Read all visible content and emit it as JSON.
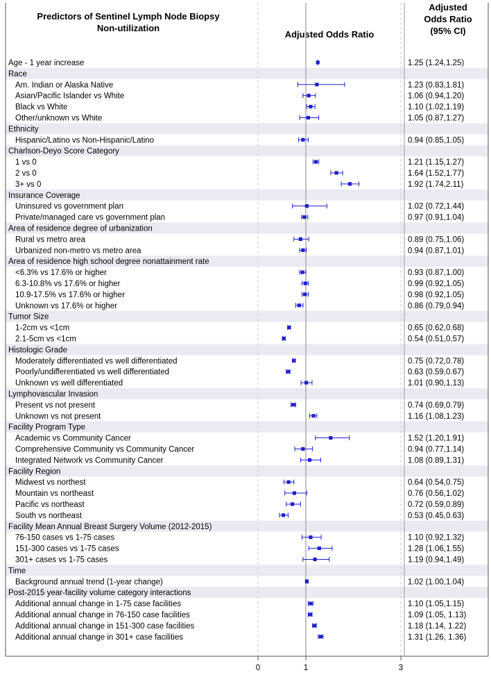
{
  "header": {
    "title_line1": "Predictors of Sentinel Lymph Node Biopsy",
    "title_line2": "Non-utilization",
    "axis_title": "Adjusted Odds Ratio",
    "col_title_line1": "Adjusted",
    "col_title_line2": "Odds Ratio",
    "col_title_line3": "(95% CI)"
  },
  "colors": {
    "marker": "#1f1fcc",
    "band": "#eaeaf2",
    "refline": "#9a9a9a",
    "grid": "#cfcfcf"
  },
  "chart_data": {
    "type": "forest",
    "x_ticks": [
      "0",
      "1",
      "3"
    ],
    "reference_value": 1,
    "rows": [
      {
        "label": "Age - 1 year increase",
        "or": 1.25,
        "lo": 1.24,
        "hi": 1.25,
        "ci": "1.25 (1.24,1.25)",
        "indent": false
      },
      {
        "label": "Race",
        "heading": true
      },
      {
        "label": "Am. Indian or Alaska Native",
        "or": 1.23,
        "lo": 0.83,
        "hi": 1.81,
        "ci": "1.23 (0.83,1.81)",
        "indent": true
      },
      {
        "label": "Asian/Pacific Islander vs White",
        "or": 1.06,
        "lo": 0.94,
        "hi": 1.2,
        "ci": "1.06 (0.94,1.20)",
        "indent": true
      },
      {
        "label": "Black vs White",
        "or": 1.1,
        "lo": 1.02,
        "hi": 1.19,
        "ci": "1.10 (1.02,1.19)",
        "indent": true
      },
      {
        "label": "Other/unknown vs White",
        "or": 1.05,
        "lo": 0.87,
        "hi": 1.27,
        "ci": "1.05 (0.87,1.27)",
        "indent": true
      },
      {
        "label": "Ethnicity",
        "heading": true
      },
      {
        "label": "Hispanic/Latino vs Non-Hispanic/Latino",
        "or": 0.94,
        "lo": 0.85,
        "hi": 1.05,
        "ci": "0.94 (0.85,1.05)",
        "indent": true
      },
      {
        "label": "Charlson-Deyo Score Category",
        "heading": true
      },
      {
        "label": "1 vs 0",
        "or": 1.21,
        "lo": 1.15,
        "hi": 1.27,
        "ci": "1.21 (1.15,1.27)",
        "indent": true
      },
      {
        "label": "2 vs 0",
        "or": 1.64,
        "lo": 1.52,
        "hi": 1.77,
        "ci": "1.64 (1.52,1.77)",
        "indent": true
      },
      {
        "label": "3+ vs 0",
        "or": 1.92,
        "lo": 1.74,
        "hi": 2.11,
        "ci": "1.92 (1.74,2.11)",
        "indent": true
      },
      {
        "label": "Insurance Coverage",
        "heading": true
      },
      {
        "label": "Uninsured vs government plan",
        "or": 1.02,
        "lo": 0.72,
        "hi": 1.44,
        "ci": "1.02 (0.72,1.44)",
        "indent": true
      },
      {
        "label": "Private/managed care vs government plan",
        "or": 0.97,
        "lo": 0.91,
        "hi": 1.04,
        "ci": "0.97 (0.91,1.04)",
        "indent": true
      },
      {
        "label": "Area of residence degree of urbanization",
        "heading": true
      },
      {
        "label": "Rural vs metro area",
        "or": 0.89,
        "lo": 0.75,
        "hi": 1.06,
        "ci": "0.89 (0.75,1.06)",
        "indent": true
      },
      {
        "label": "Urbanized non-metro vs metro area",
        "or": 0.94,
        "lo": 0.87,
        "hi": 1.01,
        "ci": "0.94 (0.87,1.01)",
        "indent": true
      },
      {
        "label": "Area of residence high school degree nonattainment rate",
        "heading": true
      },
      {
        "label": "<6.3% vs 17.6% or higher",
        "or": 0.93,
        "lo": 0.87,
        "hi": 1.0,
        "ci": "0.93 (0.87,1.00)",
        "indent": true
      },
      {
        "label": "6.3-10.8% vs 17.6% or higher",
        "or": 0.99,
        "lo": 0.92,
        "hi": 1.05,
        "ci": "0.99 (0.92,1.05)",
        "indent": true
      },
      {
        "label": "10.9-17.5% vs 17.6% or higher",
        "or": 0.98,
        "lo": 0.92,
        "hi": 1.05,
        "ci": "0.98 (0.92,1.05)",
        "indent": true
      },
      {
        "label": "Unknown vs 17.6% or higher",
        "or": 0.86,
        "lo": 0.79,
        "hi": 0.94,
        "ci": "0.86 (0.79,0.94)",
        "indent": true
      },
      {
        "label": "Tumor Size",
        "heading": true
      },
      {
        "label": "1-2cm vs <1cm",
        "or": 0.65,
        "lo": 0.62,
        "hi": 0.68,
        "ci": "0.65 (0.62,0.68)",
        "indent": true
      },
      {
        "label": "2.1-5cm vs <1cm",
        "or": 0.54,
        "lo": 0.51,
        "hi": 0.57,
        "ci": "0.54 (0.51,0.57)",
        "indent": true
      },
      {
        "label": "Histologic Grade",
        "heading": true
      },
      {
        "label": "Moderately differentiated vs well differentiated",
        "or": 0.75,
        "lo": 0.72,
        "hi": 0.78,
        "ci": "0.75 (0.72,0.78)",
        "indent": true
      },
      {
        "label": "Poorly/undifferentiated vs well differentiated",
        "or": 0.63,
        "lo": 0.59,
        "hi": 0.67,
        "ci": "0.63 (0.59,0.67)",
        "indent": true
      },
      {
        "label": "Unknown vs well differentiated",
        "or": 1.01,
        "lo": 0.9,
        "hi": 1.13,
        "ci": "1.01 (0.90,1.13)",
        "indent": true
      },
      {
        "label": "Lymphovascular Invasion",
        "heading": true
      },
      {
        "label": "Present vs not present",
        "or": 0.74,
        "lo": 0.69,
        "hi": 0.79,
        "ci": "0.74 (0.69,0.79)",
        "indent": true
      },
      {
        "label": "Unknown vs not present",
        "or": 1.16,
        "lo": 1.08,
        "hi": 1.23,
        "ci": "1.16 (1.08,1.23)",
        "indent": true
      },
      {
        "label": "Facility Program Type",
        "heading": true
      },
      {
        "label": "Academic vs Community Cancer",
        "or": 1.52,
        "lo": 1.2,
        "hi": 1.91,
        "ci": "1.52 (1.20,1.91)",
        "indent": true
      },
      {
        "label": "Comprehensive Community vs Community Cancer",
        "or": 0.94,
        "lo": 0.77,
        "hi": 1.14,
        "ci": "0.94 (0.77,1.14)",
        "indent": true
      },
      {
        "label": "Integrated Network vs Community Cancer",
        "or": 1.08,
        "lo": 0.89,
        "hi": 1.31,
        "ci": "1.08 (0.89,1.31)",
        "indent": true
      },
      {
        "label": "Facility Region",
        "heading": true
      },
      {
        "label": "Midwest vs northest",
        "or": 0.64,
        "lo": 0.54,
        "hi": 0.75,
        "ci": "0.64 (0.54,0.75)",
        "indent": true
      },
      {
        "label": "Mountain vs northeast",
        "or": 0.76,
        "lo": 0.56,
        "hi": 1.02,
        "ci": "0.76 (0.56,1.02)",
        "indent": true
      },
      {
        "label": "Pacific vs northeast",
        "or": 0.72,
        "lo": 0.59,
        "hi": 0.89,
        "ci": "0.72 (0.59,0.89)",
        "indent": true
      },
      {
        "label": "South vs northeast",
        "or": 0.53,
        "lo": 0.45,
        "hi": 0.63,
        "ci": "0.53 (0.45,0.63)",
        "indent": true
      },
      {
        "label": "Facility Mean Annual Breast Surgery Volume (2012-2015)",
        "heading": true
      },
      {
        "label": "76-150 cases vs 1-75 cases",
        "or": 1.1,
        "lo": 0.92,
        "hi": 1.32,
        "ci": "1.10 (0.92,1.32)",
        "indent": true
      },
      {
        "label": "151-300 cases vs 1-75 cases",
        "or": 1.28,
        "lo": 1.06,
        "hi": 1.55,
        "ci": "1.28 (1.06,1.55)",
        "indent": true
      },
      {
        "label": "301+ cases vs 1-75 cases",
        "or": 1.19,
        "lo": 0.94,
        "hi": 1.49,
        "ci": "1.19 (0.94,1.49)",
        "indent": true
      },
      {
        "label": "Time",
        "heading": true
      },
      {
        "label": "Background annual trend (1-year change)",
        "or": 1.02,
        "lo": 1.0,
        "hi": 1.04,
        "ci": "1.02 (1.00,1.04)",
        "indent": true
      },
      {
        "label": "Post-2015 year-facility volume category interactions",
        "heading": true
      },
      {
        "label": "Additional annual change in 1-75 case facilities",
        "or": 1.1,
        "lo": 1.05,
        "hi": 1.15,
        "ci": "1.10 (1.05,1.15)",
        "indent": true
      },
      {
        "label": "Additional annual change in 76-150 case facilities",
        "or": 1.09,
        "lo": 1.05,
        "hi": 1.13,
        "ci": "1.09 (1.05, 1.13)",
        "indent": true
      },
      {
        "label": "Additional annual change in 151-300 case facilities",
        "or": 1.18,
        "lo": 1.14,
        "hi": 1.22,
        "ci": "1.18 (1.14, 1.22)",
        "indent": true
      },
      {
        "label": "Additional annual change in 301+ case facilities",
        "or": 1.31,
        "lo": 1.26,
        "hi": 1.36,
        "ci": "1.31 (1.26, 1.36)",
        "indent": true
      }
    ]
  }
}
